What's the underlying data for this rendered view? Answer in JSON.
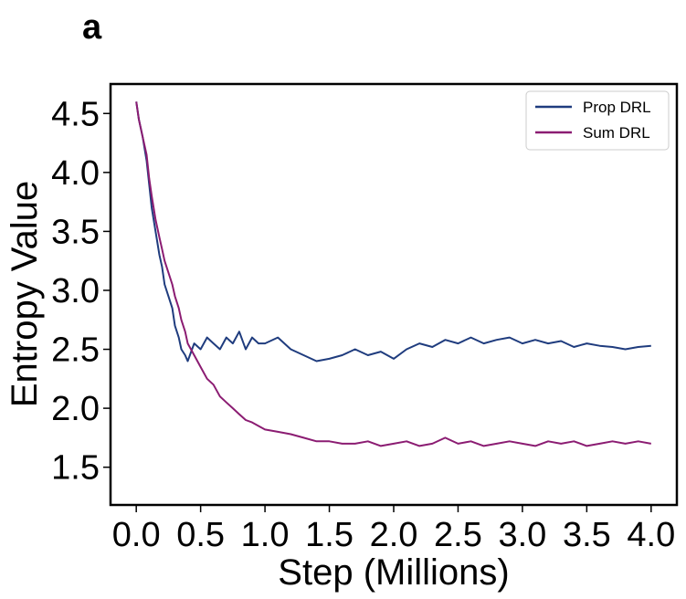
{
  "panel_label": "a",
  "chart_data": {
    "type": "line",
    "title": "",
    "xlabel": "Step (Millions)",
    "ylabel": "Entropy Value",
    "xlim": [
      -0.2,
      4.2
    ],
    "ylim": [
      1.18,
      4.75
    ],
    "xticks": [
      "0.0",
      "0.5",
      "1.0",
      "1.5",
      "2.0",
      "2.5",
      "3.0",
      "3.5",
      "4.0"
    ],
    "xtick_values": [
      0.0,
      0.5,
      1.0,
      1.5,
      2.0,
      2.5,
      3.0,
      3.5,
      4.0
    ],
    "yticks": [
      "1.5",
      "2.0",
      "2.5",
      "3.0",
      "3.5",
      "4.0",
      "4.5"
    ],
    "ytick_values": [
      1.5,
      2.0,
      2.5,
      3.0,
      3.5,
      4.0,
      4.5
    ],
    "grid": false,
    "legend_position": "top-right",
    "series": [
      {
        "name": "Prop DRL",
        "color": "#1f3c7e",
        "x": [
          0.0,
          0.02,
          0.05,
          0.08,
          0.1,
          0.12,
          0.15,
          0.18,
          0.2,
          0.22,
          0.25,
          0.28,
          0.3,
          0.33,
          0.35,
          0.38,
          0.4,
          0.45,
          0.5,
          0.55,
          0.6,
          0.65,
          0.7,
          0.75,
          0.8,
          0.85,
          0.9,
          0.95,
          1.0,
          1.1,
          1.2,
          1.3,
          1.4,
          1.5,
          1.6,
          1.7,
          1.8,
          1.9,
          2.0,
          2.1,
          2.2,
          2.3,
          2.4,
          2.5,
          2.6,
          2.7,
          2.8,
          2.9,
          3.0,
          3.1,
          3.2,
          3.3,
          3.4,
          3.5,
          3.6,
          3.7,
          3.8,
          3.9,
          4.0
        ],
        "y": [
          4.6,
          4.45,
          4.3,
          4.1,
          3.9,
          3.7,
          3.5,
          3.3,
          3.2,
          3.05,
          2.95,
          2.85,
          2.7,
          2.6,
          2.5,
          2.45,
          2.4,
          2.55,
          2.5,
          2.6,
          2.55,
          2.5,
          2.6,
          2.55,
          2.65,
          2.5,
          2.6,
          2.55,
          2.55,
          2.6,
          2.5,
          2.45,
          2.4,
          2.42,
          2.45,
          2.5,
          2.45,
          2.48,
          2.42,
          2.5,
          2.55,
          2.52,
          2.58,
          2.55,
          2.6,
          2.55,
          2.58,
          2.6,
          2.55,
          2.58,
          2.55,
          2.57,
          2.52,
          2.55,
          2.53,
          2.52,
          2.5,
          2.52,
          2.53
        ]
      },
      {
        "name": "Sum DRL",
        "color": "#8b1c72",
        "x": [
          0.0,
          0.02,
          0.05,
          0.08,
          0.1,
          0.12,
          0.15,
          0.18,
          0.2,
          0.22,
          0.25,
          0.28,
          0.3,
          0.33,
          0.35,
          0.38,
          0.4,
          0.45,
          0.5,
          0.55,
          0.6,
          0.65,
          0.7,
          0.75,
          0.8,
          0.85,
          0.9,
          0.95,
          1.0,
          1.1,
          1.2,
          1.3,
          1.4,
          1.5,
          1.6,
          1.7,
          1.8,
          1.9,
          2.0,
          2.1,
          2.2,
          2.3,
          2.4,
          2.5,
          2.6,
          2.7,
          2.8,
          2.9,
          3.0,
          3.1,
          3.2,
          3.3,
          3.4,
          3.5,
          3.6,
          3.7,
          3.8,
          3.9,
          4.0
        ],
        "y": [
          4.6,
          4.45,
          4.3,
          4.15,
          3.95,
          3.8,
          3.6,
          3.45,
          3.35,
          3.25,
          3.15,
          3.05,
          2.95,
          2.85,
          2.75,
          2.65,
          2.55,
          2.45,
          2.35,
          2.25,
          2.2,
          2.1,
          2.05,
          2.0,
          1.95,
          1.9,
          1.88,
          1.85,
          1.82,
          1.8,
          1.78,
          1.75,
          1.72,
          1.72,
          1.7,
          1.7,
          1.72,
          1.68,
          1.7,
          1.72,
          1.68,
          1.7,
          1.75,
          1.7,
          1.72,
          1.68,
          1.7,
          1.72,
          1.7,
          1.68,
          1.72,
          1.7,
          1.72,
          1.68,
          1.7,
          1.72,
          1.7,
          1.72,
          1.7
        ]
      }
    ]
  }
}
